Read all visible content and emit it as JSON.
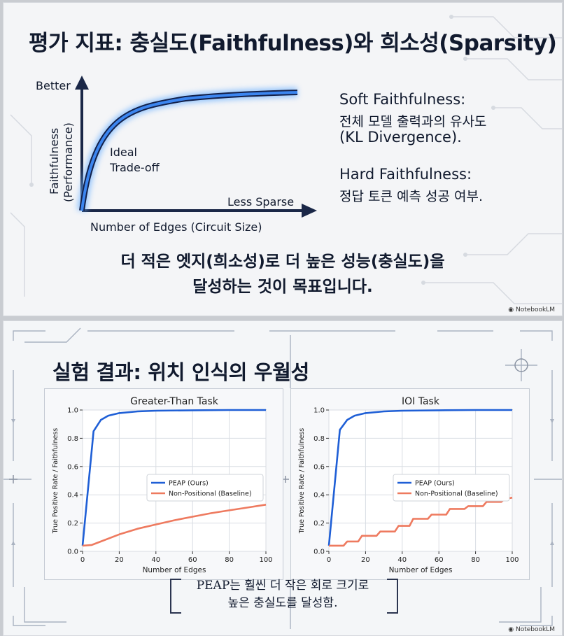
{
  "slide1": {
    "title": "평가 지표: 충실도(Faithfulness)와 희소성(Sparsity)",
    "diagram": {
      "y_top_label": "Better",
      "y_axis_label_line1": "Faithfulness",
      "y_axis_label_line2": "(Performance)",
      "curve_label_line1": "Ideal",
      "curve_label_line2": "Trade-off",
      "x_end_label": "Less Sparse",
      "x_axis_label": "Number of Edges (Circuit Size)"
    },
    "definitions": {
      "soft_title": "Soft Faithfulness:",
      "soft_line1": "전체 모델 출력과의 유사도",
      "soft_line2": "(KL Divergence).",
      "hard_title": "Hard Faithfulness:",
      "hard_line1": "정답 토큰 예측 성공 여부."
    },
    "caption_line1": "더 적은 엣지(희소성)로 더 높은 성능(충실도)을",
    "caption_line2": "달성하는 것이 목표입니다.",
    "watermark": "NotebookLM"
  },
  "slide2": {
    "title": "실험 결과: 위치 인식의 우월성",
    "caption_line1": "PEAP는 훨씬 더 작은 회로 크기로",
    "caption_line2": "높은 충실도를 달성함.",
    "watermark": "NotebookLM"
  },
  "chart_data": [
    {
      "type": "line",
      "title": "Greater-Than Task",
      "xlabel": "Number of Edges",
      "ylabel": "True Positive Rate / Faithfulness",
      "xlim": [
        0,
        100
      ],
      "ylim": [
        0,
        1.0
      ],
      "xticks": [
        0,
        20,
        40,
        60,
        80,
        100
      ],
      "yticks": [
        0.0,
        0.2,
        0.4,
        0.6,
        0.8,
        1.0
      ],
      "grid": true,
      "legend_position": "center-right",
      "series": [
        {
          "name": "PEAP (Ours)",
          "color": "#1f5fd6",
          "x": [
            0,
            6,
            10,
            14,
            20,
            30,
            40,
            60,
            80,
            100
          ],
          "y": [
            0.04,
            0.85,
            0.93,
            0.96,
            0.978,
            0.99,
            0.995,
            0.998,
            1.0,
            1.0
          ]
        },
        {
          "name": "Non-Positional (Baseline)",
          "color": "#ee7a5f",
          "x": [
            0,
            5,
            10,
            20,
            30,
            40,
            50,
            60,
            70,
            80,
            90,
            100
          ],
          "y": [
            0.04,
            0.045,
            0.07,
            0.12,
            0.16,
            0.19,
            0.22,
            0.245,
            0.27,
            0.29,
            0.31,
            0.33
          ]
        }
      ]
    },
    {
      "type": "line",
      "title": "IOI Task",
      "xlabel": "Number of Edges",
      "ylabel": "True Positive Rate / Faithfulness",
      "xlim": [
        0,
        100
      ],
      "ylim": [
        0,
        1.0
      ],
      "xticks": [
        0,
        20,
        40,
        60,
        80,
        100
      ],
      "yticks": [
        0.0,
        0.2,
        0.4,
        0.6,
        0.8,
        1.0
      ],
      "grid": true,
      "legend_position": "center-right",
      "series": [
        {
          "name": "PEAP (Ours)",
          "color": "#1f5fd6",
          "x": [
            0,
            6,
            10,
            14,
            20,
            30,
            40,
            60,
            80,
            100
          ],
          "y": [
            0.04,
            0.86,
            0.93,
            0.96,
            0.978,
            0.99,
            0.995,
            0.998,
            1.0,
            1.0
          ]
        },
        {
          "name": "Non-Positional (Baseline)",
          "color": "#ee7a5f",
          "x": [
            0,
            8,
            10,
            16,
            18,
            26,
            28,
            36,
            38,
            44,
            46,
            54,
            56,
            64,
            66,
            74,
            76,
            84,
            86,
            94,
            96,
            100
          ],
          "y": [
            0.04,
            0.04,
            0.07,
            0.07,
            0.11,
            0.11,
            0.14,
            0.14,
            0.18,
            0.18,
            0.23,
            0.23,
            0.26,
            0.26,
            0.3,
            0.3,
            0.32,
            0.32,
            0.35,
            0.35,
            0.37,
            0.38
          ]
        }
      ]
    }
  ]
}
